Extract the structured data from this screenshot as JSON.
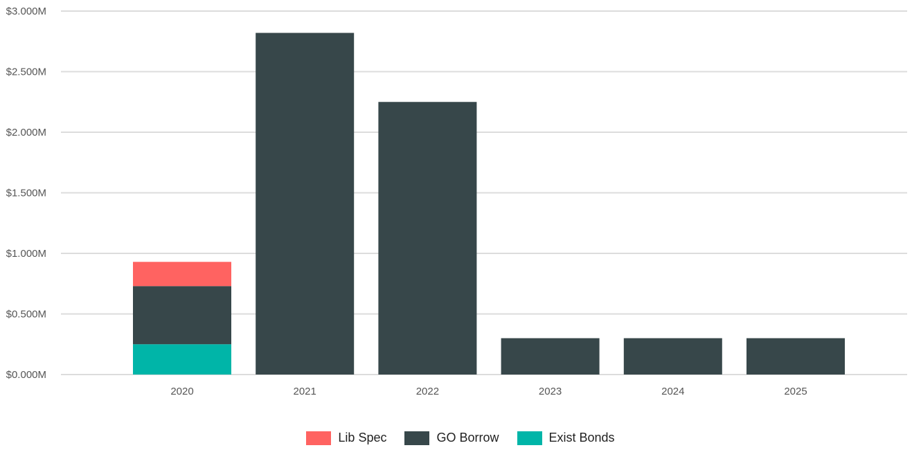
{
  "chart_data": {
    "type": "bar",
    "stacked": true,
    "categories": [
      "2020",
      "2021",
      "2022",
      "2023",
      "2024",
      "2025"
    ],
    "series": [
      {
        "name": "Exist Bonds",
        "color": "#00b5a8",
        "values": [
          0.25,
          0,
          0,
          0,
          0,
          0
        ]
      },
      {
        "name": "GO Borrow",
        "color": "#37474a",
        "values": [
          0.48,
          2.82,
          2.25,
          0.3,
          0.3,
          0.3
        ]
      },
      {
        "name": "Lib Spec",
        "color": "#ff6361",
        "values": [
          0.2,
          0,
          0,
          0,
          0,
          0
        ]
      }
    ],
    "ylim": [
      0,
      3.0
    ],
    "yticks": [
      0,
      0.5,
      1.0,
      1.5,
      2.0,
      2.5,
      3.0
    ],
    "ytick_labels": [
      "$0.000M",
      "$0.500M",
      "$1.000M",
      "$1.500M",
      "$2.000M",
      "$2.500M",
      "$3.000M"
    ],
    "grid": true,
    "legend_position": "bottom-center",
    "legend_order": [
      "Lib Spec",
      "GO Borrow",
      "Exist Bonds"
    ]
  }
}
